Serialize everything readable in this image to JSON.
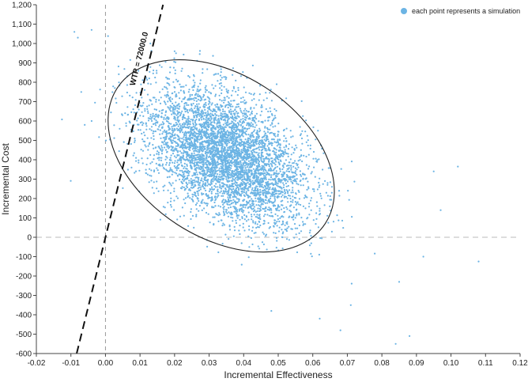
{
  "chart_data": {
    "type": "scatter",
    "xlabel": "Incremental Effectiveness",
    "ylabel": "Incremental Cost",
    "xlim": [
      -0.02,
      0.12
    ],
    "ylim": [
      -600,
      1200
    ],
    "x_ticks": [
      "-0.02",
      "-0.01",
      "0.00",
      "0.01",
      "0.02",
      "0.03",
      "0.04",
      "0.05",
      "0.06",
      "0.07",
      "0.08",
      "0.09",
      "0.10",
      "0.11",
      "0.12"
    ],
    "y_ticks": [
      "-600",
      "-500",
      "-400",
      "-300",
      "-200",
      "-100",
      "0",
      "100",
      "200",
      "300",
      "400",
      "500",
      "600",
      "700",
      "800",
      "900",
      "1,000",
      "1,100",
      "1,200"
    ],
    "legend": {
      "label": "each point represents a simulation",
      "position": "top-right",
      "color": "#6cb4e4"
    },
    "point_color": "#6cb4e4",
    "cloud": {
      "n_simulations": 5000,
      "mean_x": 0.035,
      "mean_y": 420,
      "sd_x": 0.0115,
      "sd_y": 175,
      "correlation": -0.45
    },
    "outliers": [
      {
        "x": -0.009,
        "y": 1060
      },
      {
        "x": -0.008,
        "y": 1030
      },
      {
        "x": -0.004,
        "y": 1070
      },
      {
        "x": -0.006,
        "y": 580
      },
      {
        "x": -0.004,
        "y": 600
      },
      {
        "x": -0.007,
        "y": 750
      },
      {
        "x": 0.095,
        "y": 340
      },
      {
        "x": 0.102,
        "y": 365
      },
      {
        "x": 0.097,
        "y": 140
      },
      {
        "x": 0.108,
        "y": -125
      },
      {
        "x": 0.092,
        "y": -100
      },
      {
        "x": 0.088,
        "y": -510
      },
      {
        "x": 0.084,
        "y": -550
      },
      {
        "x": 0.068,
        "y": -480
      },
      {
        "x": 0.062,
        "y": -420
      },
      {
        "x": 0.085,
        "y": -230
      },
      {
        "x": 0.071,
        "y": -350
      },
      {
        "x": 0.048,
        "y": -380
      },
      {
        "x": 0.013,
        "y": 1000
      },
      {
        "x": 0.02,
        "y": 960
      }
    ],
    "ellipse": {
      "center_x": 0.0335,
      "center_y": 420,
      "label": ""
    },
    "wtp_line": {
      "slope": 72000.0,
      "label": "WTP = 72000.0",
      "style": "dashed"
    },
    "reference_lines": {
      "x": 0,
      "y": 0,
      "style": "dashed",
      "color": "#bbbbbb"
    }
  }
}
